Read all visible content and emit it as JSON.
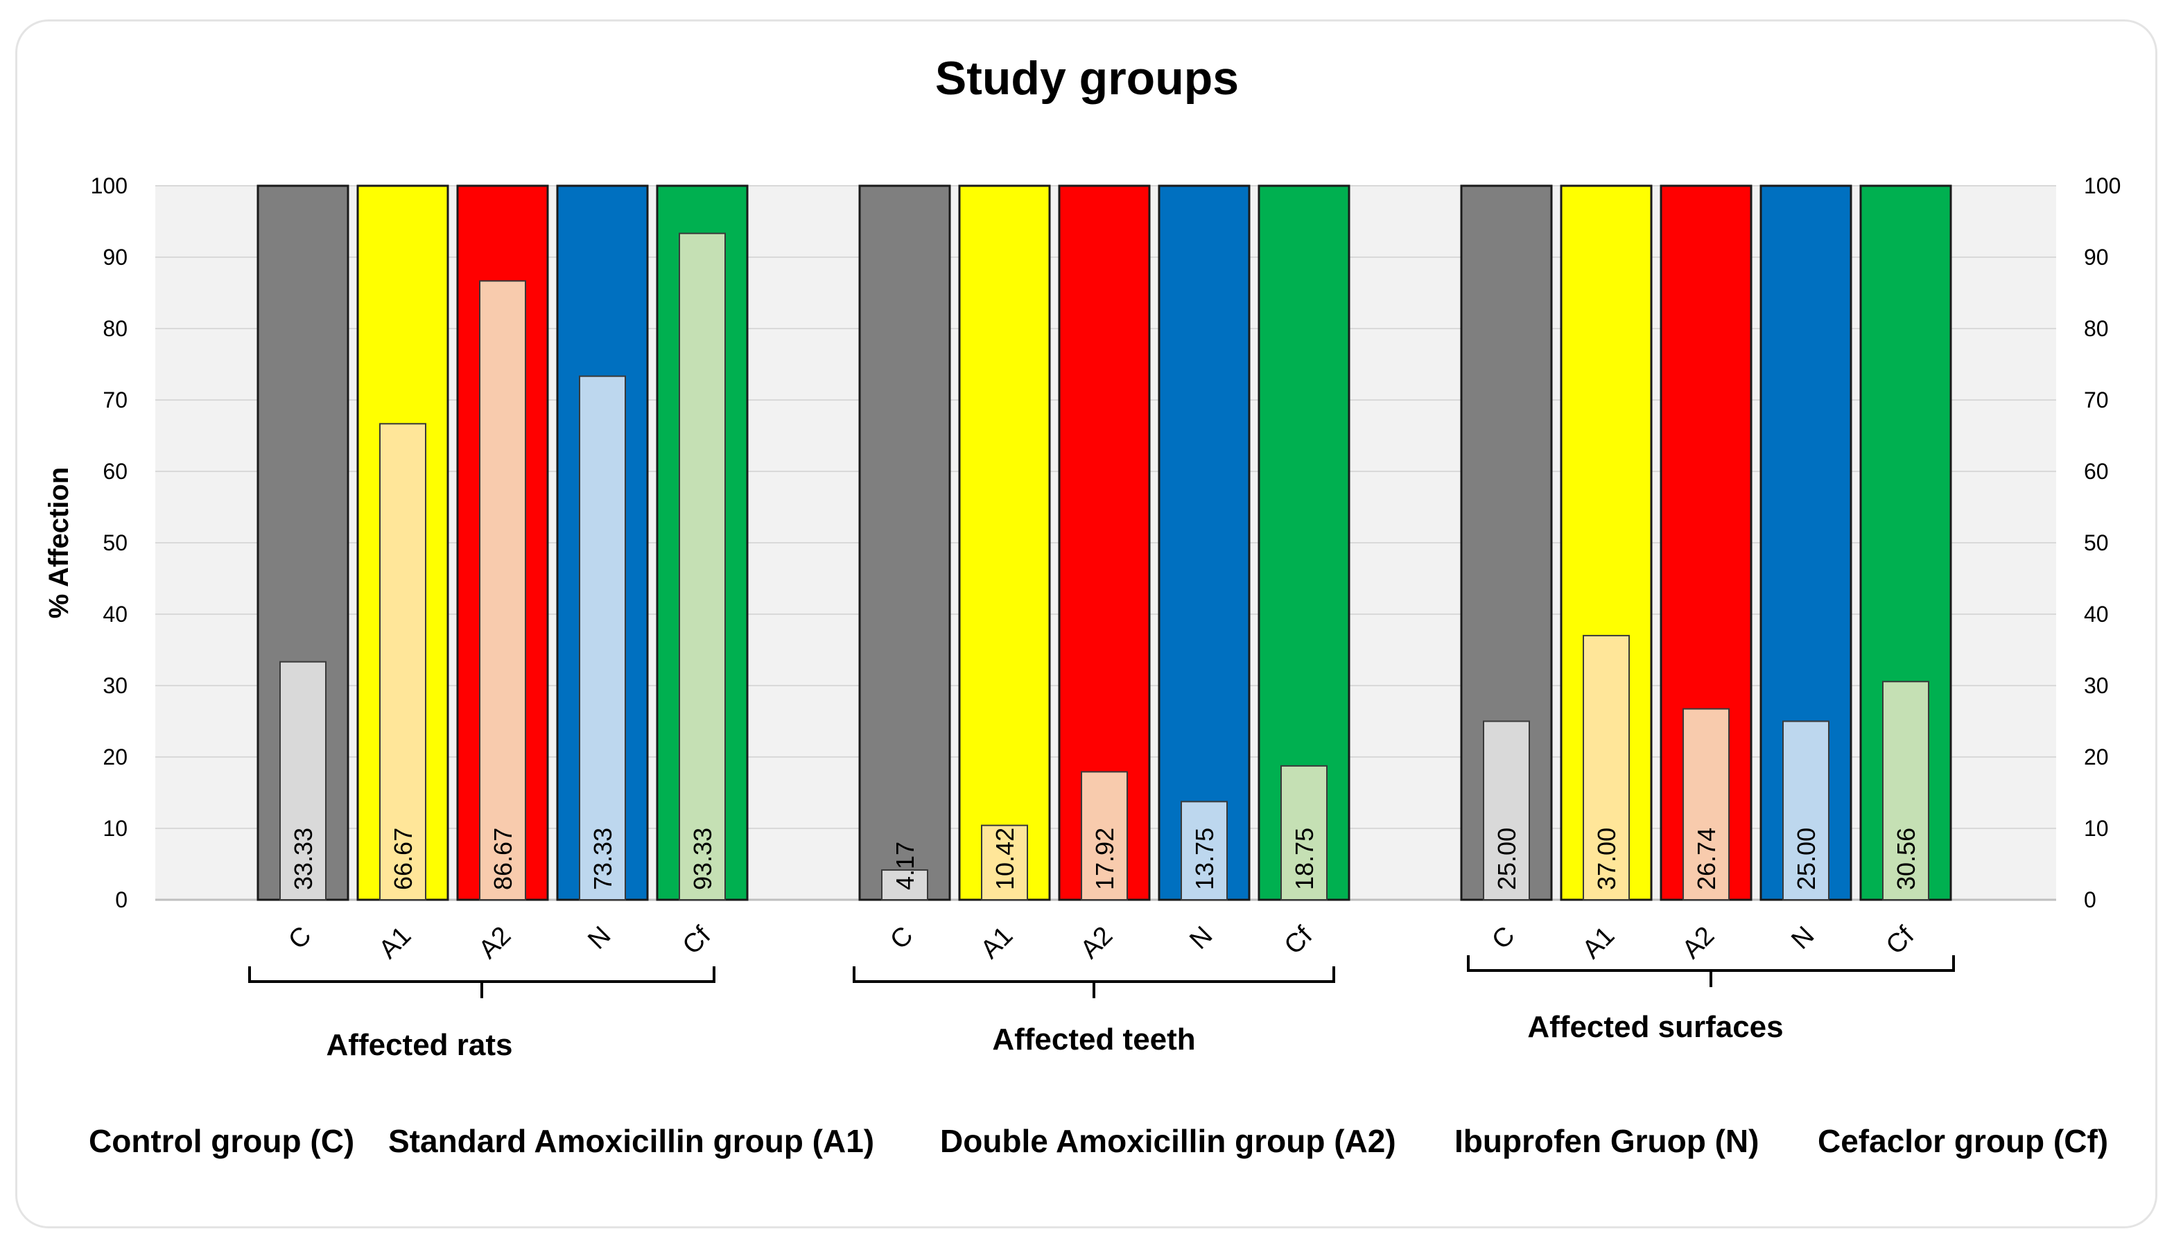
{
  "chart_data": {
    "type": "bar",
    "title": "Study groups",
    "ylabel": "% Affection",
    "ylim": [
      0,
      100
    ],
    "yticks": [
      0,
      10,
      20,
      30,
      40,
      50,
      60,
      70,
      80,
      90,
      100
    ],
    "secondary_axis": true,
    "grid": true,
    "categories": [
      "C",
      "A1",
      "A2",
      "N",
      "Cf"
    ],
    "background_bar_value": 100,
    "groups": [
      {
        "label": "Affected rats",
        "values": [
          33.33,
          66.67,
          86.67,
          73.33,
          93.33
        ]
      },
      {
        "label": "Affected teeth",
        "values": [
          4.17,
          10.42,
          17.92,
          13.75,
          18.75
        ]
      },
      {
        "label": "Affected surfaces",
        "values": [
          25.0,
          37.0,
          26.74,
          25.0,
          30.56
        ]
      }
    ],
    "value_labels": [
      [
        "33.33",
        "66.67",
        "86.67",
        "73.33",
        "93.33"
      ],
      [
        "4.17",
        "10.42",
        "17.92",
        "13.75",
        "18.75"
      ],
      [
        "25.00",
        "37.00",
        "26.74",
        "25.00",
        "30.56"
      ]
    ],
    "series": [
      {
        "key": "C",
        "name": "Control group (C)",
        "color": "#7f7f7f",
        "light": "#d9d9d9"
      },
      {
        "key": "A1",
        "name": "Standard Amoxicillin group (A1)",
        "color": "#ffff00",
        "light": "#ffe699"
      },
      {
        "key": "A2",
        "name": "Double Amoxicillin group (A2)",
        "color": "#ff0000",
        "light": "#f8cbad"
      },
      {
        "key": "N",
        "name": "Ibuprofen Gruop (N)",
        "color": "#0070c0",
        "light": "#bdd7ee"
      },
      {
        "key": "Cf",
        "name": "Cefaclor group (Cf)",
        "color": "#00b050",
        "light": "#c5e0b4"
      }
    ],
    "legend_position": "bottom"
  }
}
